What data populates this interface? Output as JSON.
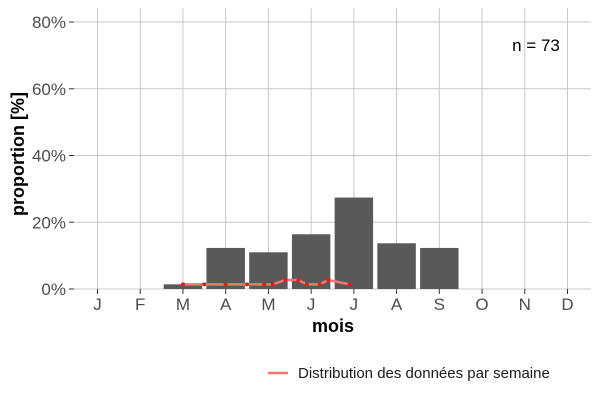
{
  "chart_data": {
    "type": "bar",
    "categories": [
      "J",
      "F",
      "M",
      "A",
      "M",
      "J",
      "J",
      "A",
      "S",
      "O",
      "N",
      "D"
    ],
    "values": [
      0,
      0,
      1.4,
      12.3,
      11.0,
      16.4,
      27.4,
      13.7,
      12.3,
      0,
      0,
      0
    ],
    "ylim": [
      0,
      80
    ],
    "yticks": [
      0,
      20,
      40,
      60,
      80
    ],
    "ytick_labels": [
      "0%",
      "20%",
      "40%",
      "60%",
      "80%"
    ],
    "xlabel": "mois",
    "ylabel": "proportion [%]",
    "annotation": "n = 73",
    "grid": true,
    "legend_position": "bottom-right",
    "series": [
      {
        "name": "Distribution des données par semaine",
        "type": "line",
        "x": [
          3.0,
          3.5,
          4.0,
          4.5,
          4.9,
          5.1,
          5.4,
          5.7,
          5.9,
          6.2,
          6.4,
          6.9
        ],
        "y": [
          1.4,
          1.4,
          1.4,
          1.4,
          1.4,
          1.4,
          2.7,
          2.7,
          1.4,
          1.4,
          2.7,
          1.4
        ]
      }
    ],
    "colors": {
      "bar": "#595959",
      "line": "#F8766D",
      "points": "#e41a1c",
      "grid": "#c8c8c8"
    }
  }
}
